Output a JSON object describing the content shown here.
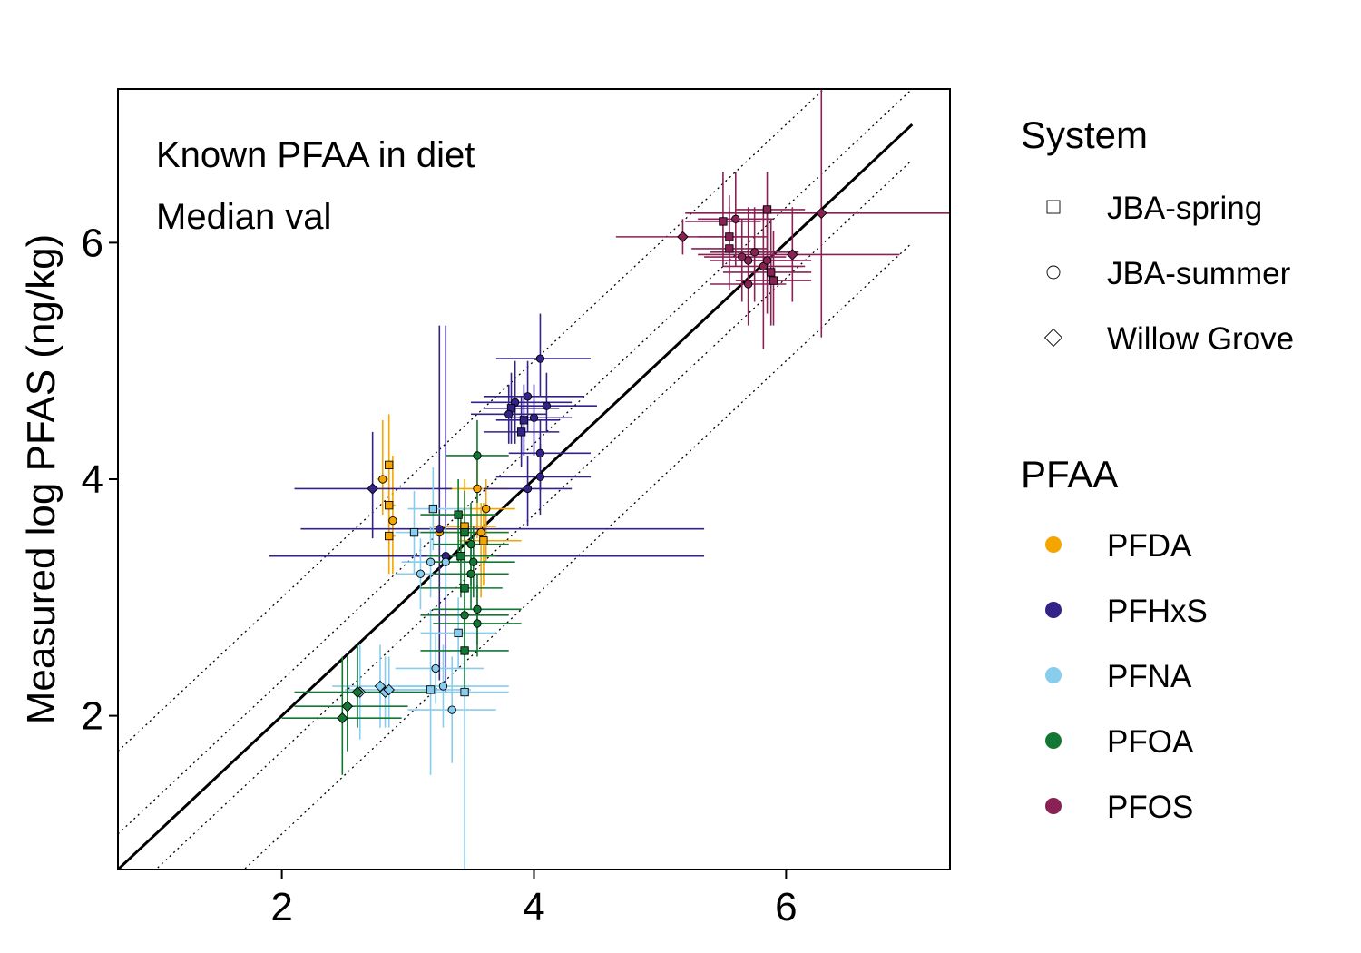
{
  "chart_data": {
    "type": "scatter",
    "title": "",
    "annotations": [
      "Known PFAA in diet",
      "Median val"
    ],
    "xlabel": "",
    "ylabel": "Measured log PFAS (ng/kg)",
    "xlim": [
      0.7,
      7.3
    ],
    "ylim": [
      0.7,
      7.3
    ],
    "xticks": [
      2,
      4,
      6
    ],
    "yticks": [
      2,
      4,
      6
    ],
    "grid": false,
    "reference_lines": [
      {
        "name": "1:1 line",
        "offset": 0,
        "style": "solid"
      },
      {
        "name": "+1 dotted",
        "offset": 1,
        "style": "dotted"
      },
      {
        "name": "-1 dotted",
        "offset": -1,
        "style": "dotted"
      },
      {
        "name": "+0.3 dotted",
        "offset": 0.3,
        "style": "dotted"
      },
      {
        "name": "-0.3 dotted",
        "offset": -0.3,
        "style": "dotted"
      }
    ],
    "legend": {
      "system_title": "System",
      "system_entries": [
        {
          "label": "JBA-spring",
          "shape": "square"
        },
        {
          "label": "JBA-summer",
          "shape": "circle"
        },
        {
          "label": "Willow Grove",
          "shape": "diamond"
        }
      ],
      "pfaa_title": "PFAA",
      "pfaa_entries": [
        {
          "label": "PFDA",
          "color": "#F5A500"
        },
        {
          "label": "PFHxS",
          "color": "#332288"
        },
        {
          "label": "PFNA",
          "color": "#88CCEE"
        },
        {
          "label": "PFOA",
          "color": "#117733"
        },
        {
          "label": "PFOS",
          "color": "#882255"
        }
      ],
      "placement": "right"
    },
    "series": [
      {
        "name": "PFDA",
        "color": "#F5A500",
        "points": [
          {
            "x": 2.85,
            "y": 4.12,
            "s": "square",
            "xe": [
              2.85,
              2.85
            ],
            "ye": [
              3.6,
              4.55
            ]
          },
          {
            "x": 2.8,
            "y": 4.0,
            "s": "circle",
            "xe": [
              2.75,
              2.85
            ],
            "ye": [
              3.7,
              4.5
            ]
          },
          {
            "x": 2.85,
            "y": 3.78,
            "s": "square",
            "xe": [
              2.85,
              2.9
            ],
            "ye": [
              3.4,
              4.1
            ]
          },
          {
            "x": 2.88,
            "y": 3.65,
            "s": "circle",
            "xe": [
              2.85,
              2.9
            ],
            "ye": [
              3.2,
              4.2
            ]
          },
          {
            "x": 2.85,
            "y": 3.52,
            "s": "square",
            "xe": [
              2.85,
              2.9
            ],
            "ye": [
              3.2,
              3.9
            ]
          },
          {
            "x": 3.55,
            "y": 3.92,
            "s": "circle",
            "xe": [
              3.3,
              3.8
            ],
            "ye": [
              3.5,
              4.2
            ]
          },
          {
            "x": 3.62,
            "y": 3.75,
            "s": "circle",
            "xe": [
              3.4,
              3.85
            ],
            "ye": [
              3.3,
              4.0
            ]
          },
          {
            "x": 3.58,
            "y": 3.55,
            "s": "circle",
            "xe": [
              3.3,
              3.8
            ],
            "ye": [
              3.0,
              3.8
            ]
          },
          {
            "x": 3.25,
            "y": 3.55,
            "s": "circle",
            "xe": [
              3.0,
              3.5
            ],
            "ye": [
              3.2,
              3.9
            ]
          },
          {
            "x": 3.6,
            "y": 3.48,
            "s": "square",
            "xe": [
              3.4,
              3.9
            ],
            "ye": [
              3.1,
              3.8
            ]
          },
          {
            "x": 3.45,
            "y": 3.6,
            "s": "square",
            "xe": [
              3.2,
              3.7
            ],
            "ye": [
              3.2,
              4.0
            ]
          }
        ]
      },
      {
        "name": "PFHxS",
        "color": "#332288",
        "points": [
          {
            "x": 2.72,
            "y": 3.92,
            "s": "diamond",
            "xe": [
              2.1,
              3.35
            ],
            "ye": [
              3.5,
              4.4
            ]
          },
          {
            "x": 3.25,
            "y": 3.58,
            "s": "circle",
            "xe": [
              2.15,
              5.35
            ],
            "ye": [
              2.3,
              5.3
            ]
          },
          {
            "x": 3.3,
            "y": 3.35,
            "s": "circle",
            "xe": [
              1.9,
              5.35
            ],
            "ye": [
              2.2,
              5.3
            ]
          },
          {
            "x": 3.85,
            "y": 4.65,
            "s": "circle",
            "xe": [
              3.5,
              4.3
            ],
            "ye": [
              4.3,
              5.0
            ]
          },
          {
            "x": 3.82,
            "y": 4.6,
            "s": "square",
            "xe": [
              3.6,
              4.2
            ],
            "ye": [
              4.3,
              4.9
            ]
          },
          {
            "x": 3.95,
            "y": 4.7,
            "s": "circle",
            "xe": [
              3.6,
              4.4
            ],
            "ye": [
              4.4,
              5.0
            ]
          },
          {
            "x": 3.92,
            "y": 4.5,
            "s": "square",
            "xe": [
              3.7,
              4.2
            ],
            "ye": [
              4.2,
              4.8
            ]
          },
          {
            "x": 4.1,
            "y": 4.62,
            "s": "circle",
            "xe": [
              3.8,
              4.5
            ],
            "ye": [
              4.4,
              4.9
            ]
          },
          {
            "x": 4.05,
            "y": 5.02,
            "s": "circle",
            "xe": [
              3.7,
              4.45
            ],
            "ye": [
              4.7,
              5.4
            ]
          },
          {
            "x": 3.8,
            "y": 4.55,
            "s": "circle",
            "xe": [
              3.5,
              4.1
            ],
            "ye": [
              4.3,
              4.8
            ]
          },
          {
            "x": 3.9,
            "y": 4.4,
            "s": "square",
            "xe": [
              3.6,
              4.2
            ],
            "ye": [
              4.1,
              4.7
            ]
          },
          {
            "x": 4.0,
            "y": 4.52,
            "s": "circle",
            "xe": [
              3.8,
              4.3
            ],
            "ye": [
              4.2,
              4.8
            ]
          },
          {
            "x": 4.05,
            "y": 4.22,
            "s": "circle",
            "xe": [
              3.8,
              4.45
            ],
            "ye": [
              3.9,
              4.5
            ]
          },
          {
            "x": 4.05,
            "y": 4.02,
            "s": "circle",
            "xe": [
              3.7,
              4.45
            ],
            "ye": [
              3.7,
              4.3
            ]
          },
          {
            "x": 3.95,
            "y": 3.92,
            "s": "circle",
            "xe": [
              3.6,
              4.3
            ],
            "ye": [
              3.6,
              4.2
            ]
          }
        ]
      },
      {
        "name": "PFNA",
        "color": "#88CCEE",
        "points": [
          {
            "x": 2.62,
            "y": 2.2,
            "s": "diamond",
            "xe": [
              2.2,
              3.0
            ],
            "ye": [
              1.8,
              2.6
            ]
          },
          {
            "x": 2.78,
            "y": 2.25,
            "s": "diamond",
            "xe": [
              2.4,
              3.2
            ],
            "ye": [
              1.9,
              2.6
            ]
          },
          {
            "x": 2.82,
            "y": 2.2,
            "s": "diamond",
            "xe": [
              2.5,
              3.5
            ],
            "ye": [
              1.9,
              2.5
            ]
          },
          {
            "x": 3.18,
            "y": 2.22,
            "s": "square",
            "xe": [
              2.9,
              3.5
            ],
            "ye": [
              1.5,
              2.9
            ]
          },
          {
            "x": 3.28,
            "y": 2.25,
            "s": "circle",
            "xe": [
              2.9,
              3.8
            ],
            "ye": [
              1.9,
              2.6
            ]
          },
          {
            "x": 3.22,
            "y": 2.4,
            "s": "circle",
            "xe": [
              2.9,
              3.6
            ],
            "ye": [
              2.1,
              2.7
            ]
          },
          {
            "x": 3.35,
            "y": 2.05,
            "s": "circle",
            "xe": [
              3.0,
              3.7
            ],
            "ye": [
              1.6,
              2.5
            ]
          },
          {
            "x": 3.45,
            "y": 2.2,
            "s": "square",
            "xe": [
              3.1,
              3.8
            ],
            "ye": [
              0.7,
              3.0
            ]
          },
          {
            "x": 3.05,
            "y": 3.55,
            "s": "square",
            "xe": [
              2.9,
              3.3
            ],
            "ye": [
              3.2,
              3.9
            ]
          },
          {
            "x": 3.2,
            "y": 3.75,
            "s": "square",
            "xe": [
              3.0,
              3.5
            ],
            "ye": [
              3.4,
              4.1
            ]
          },
          {
            "x": 3.18,
            "y": 3.3,
            "s": "circle",
            "xe": [
              2.95,
              3.5
            ],
            "ye": [
              3.0,
              3.6
            ]
          },
          {
            "x": 3.1,
            "y": 3.2,
            "s": "circle",
            "xe": [
              2.9,
              3.4
            ],
            "ye": [
              2.9,
              3.5
            ]
          },
          {
            "x": 3.3,
            "y": 3.3,
            "s": "circle",
            "xe": [
              3.05,
              3.55
            ],
            "ye": [
              3.0,
              3.6
            ]
          },
          {
            "x": 3.4,
            "y": 2.7,
            "s": "square",
            "xe": [
              3.1,
              3.7
            ],
            "ye": [
              2.4,
              3.0
            ]
          },
          {
            "x": 2.85,
            "y": 2.22,
            "s": "diamond",
            "xe": [
              2.5,
              3.25
            ],
            "ye": [
              1.9,
              2.5
            ]
          }
        ]
      },
      {
        "name": "PFOA",
        "color": "#117733",
        "points": [
          {
            "x": 2.48,
            "y": 1.98,
            "s": "diamond",
            "xe": [
              2.0,
              2.95
            ],
            "ye": [
              1.5,
              2.5
            ]
          },
          {
            "x": 2.52,
            "y": 2.08,
            "s": "diamond",
            "xe": [
              2.1,
              3.0
            ],
            "ye": [
              1.7,
              2.5
            ]
          },
          {
            "x": 2.6,
            "y": 2.2,
            "s": "diamond",
            "xe": [
              2.1,
              3.2
            ],
            "ye": [
              1.9,
              2.6
            ]
          },
          {
            "x": 3.55,
            "y": 4.2,
            "s": "circle",
            "xe": [
              3.3,
              3.8
            ],
            "ye": [
              3.8,
              4.5
            ]
          },
          {
            "x": 3.45,
            "y": 3.55,
            "s": "square",
            "xe": [
              3.1,
              3.8
            ],
            "ye": [
              3.2,
              3.9
            ]
          },
          {
            "x": 3.5,
            "y": 3.45,
            "s": "circle",
            "xe": [
              3.2,
              3.8
            ],
            "ye": [
              3.1,
              3.8
            ]
          },
          {
            "x": 3.4,
            "y": 3.7,
            "s": "square",
            "xe": [
              3.1,
              3.7
            ],
            "ye": [
              3.3,
              4.0
            ]
          },
          {
            "x": 3.52,
            "y": 3.3,
            "s": "circle",
            "xe": [
              3.2,
              3.85
            ],
            "ye": [
              3.0,
              3.6
            ]
          },
          {
            "x": 3.5,
            "y": 3.2,
            "s": "circle",
            "xe": [
              3.2,
              3.8
            ],
            "ye": [
              2.9,
              3.5
            ]
          },
          {
            "x": 3.45,
            "y": 3.08,
            "s": "square",
            "xe": [
              3.1,
              3.75
            ],
            "ye": [
              2.7,
              3.4
            ]
          },
          {
            "x": 3.55,
            "y": 2.9,
            "s": "circle",
            "xe": [
              3.2,
              3.9
            ],
            "ye": [
              2.6,
              3.2
            ]
          },
          {
            "x": 3.45,
            "y": 2.85,
            "s": "circle",
            "xe": [
              3.1,
              3.8
            ],
            "ye": [
              2.5,
              3.2
            ]
          },
          {
            "x": 3.55,
            "y": 2.78,
            "s": "circle",
            "xe": [
              3.2,
              3.9
            ],
            "ye": [
              2.5,
              3.1
            ]
          },
          {
            "x": 3.45,
            "y": 2.55,
            "s": "square",
            "xe": [
              3.1,
              3.8
            ],
            "ye": [
              2.2,
              2.9
            ]
          },
          {
            "x": 3.42,
            "y": 3.35,
            "s": "square",
            "xe": [
              3.15,
              3.7
            ],
            "ye": [
              3.0,
              3.7
            ]
          }
        ]
      },
      {
        "name": "PFOS",
        "color": "#882255",
        "points": [
          {
            "x": 5.18,
            "y": 6.05,
            "s": "diamond",
            "xe": [
              4.65,
              5.7
            ],
            "ye": [
              5.9,
              6.2
            ]
          },
          {
            "x": 6.28,
            "y": 6.25,
            "s": "diamond",
            "xe": [
              5.2,
              7.3
            ],
            "ye": [
              5.2,
              7.3
            ]
          },
          {
            "x": 6.05,
            "y": 5.9,
            "s": "diamond",
            "xe": [
              5.3,
              6.9
            ],
            "ye": [
              5.5,
              6.3
            ]
          },
          {
            "x": 5.5,
            "y": 6.18,
            "s": "square",
            "xe": [
              5.2,
              5.8
            ],
            "ye": [
              5.8,
              6.6
            ]
          },
          {
            "x": 5.6,
            "y": 6.2,
            "s": "circle",
            "xe": [
              5.3,
              5.9
            ],
            "ye": [
              5.8,
              6.6
            ]
          },
          {
            "x": 5.55,
            "y": 6.05,
            "s": "square",
            "xe": [
              5.3,
              5.85
            ],
            "ye": [
              5.7,
              6.4
            ]
          },
          {
            "x": 5.55,
            "y": 5.95,
            "s": "square",
            "xe": [
              5.25,
              5.85
            ],
            "ye": [
              5.6,
              6.3
            ]
          },
          {
            "x": 5.85,
            "y": 6.28,
            "s": "square",
            "xe": [
              5.6,
              6.15
            ],
            "ye": [
              5.9,
              6.6
            ]
          },
          {
            "x": 5.7,
            "y": 5.85,
            "s": "circle",
            "xe": [
              5.4,
              6.1
            ],
            "ye": [
              5.4,
              6.3
            ]
          },
          {
            "x": 5.82,
            "y": 5.8,
            "s": "circle",
            "xe": [
              5.5,
              6.15
            ],
            "ye": [
              5.1,
              6.3
            ]
          },
          {
            "x": 5.88,
            "y": 5.75,
            "s": "square",
            "xe": [
              5.5,
              6.2
            ],
            "ye": [
              5.3,
              6.2
            ]
          },
          {
            "x": 5.9,
            "y": 5.68,
            "s": "square",
            "xe": [
              5.6,
              6.2
            ],
            "ye": [
              5.3,
              6.1
            ]
          },
          {
            "x": 5.7,
            "y": 5.65,
            "s": "circle",
            "xe": [
              5.4,
              6.0
            ],
            "ye": [
              5.3,
              6.0
            ]
          },
          {
            "x": 5.75,
            "y": 5.92,
            "s": "circle",
            "xe": [
              5.4,
              6.1
            ],
            "ye": [
              5.5,
              6.3
            ]
          },
          {
            "x": 5.65,
            "y": 5.88,
            "s": "circle",
            "xe": [
              5.35,
              6.0
            ],
            "ye": [
              5.5,
              6.2
            ]
          },
          {
            "x": 5.85,
            "y": 5.85,
            "s": "circle",
            "xe": [
              5.55,
              6.2
            ],
            "ye": [
              5.4,
              6.3
            ]
          }
        ]
      }
    ]
  }
}
